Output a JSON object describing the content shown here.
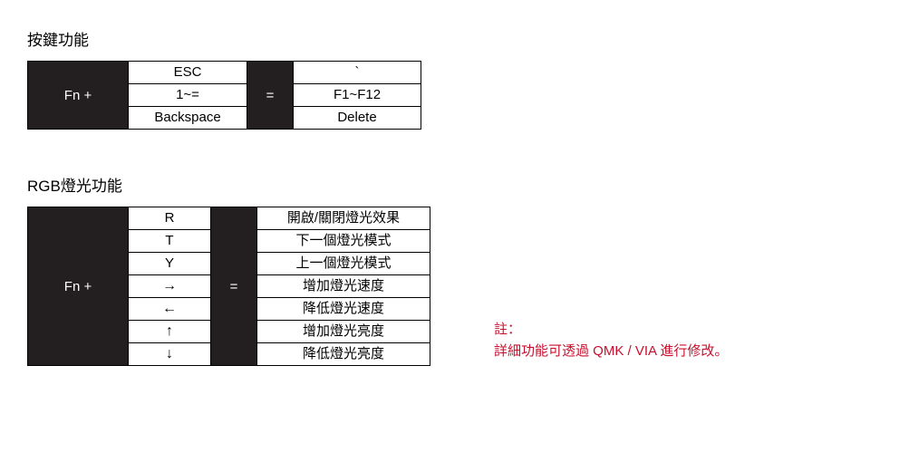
{
  "section1": {
    "title": "按鍵功能",
    "fn_label": "Fn +",
    "eq_label": "=",
    "keys_left": [
      "ESC",
      "1~=",
      "Backspace"
    ],
    "keys_right": [
      "`",
      "F1~F12",
      "Delete"
    ]
  },
  "section2": {
    "title": "RGB燈光功能",
    "fn_label": "Fn +",
    "eq_label": "=",
    "keys_left": [
      "R",
      "T",
      "Y",
      "→",
      "←",
      "↑",
      "↓"
    ],
    "keys_right": [
      "開啟/關閉燈光效果",
      "下一個燈光模式",
      "上一個燈光模式",
      "增加燈光速度",
      "降低燈光速度",
      "增加燈光亮度",
      "降低燈光亮度"
    ]
  },
  "note": {
    "label": "註：",
    "text": "詳細功能可透過 QMK / VIA 進行修改。"
  },
  "colors": {
    "dark_bg": "#231f20",
    "note_color": "#c8102e"
  }
}
